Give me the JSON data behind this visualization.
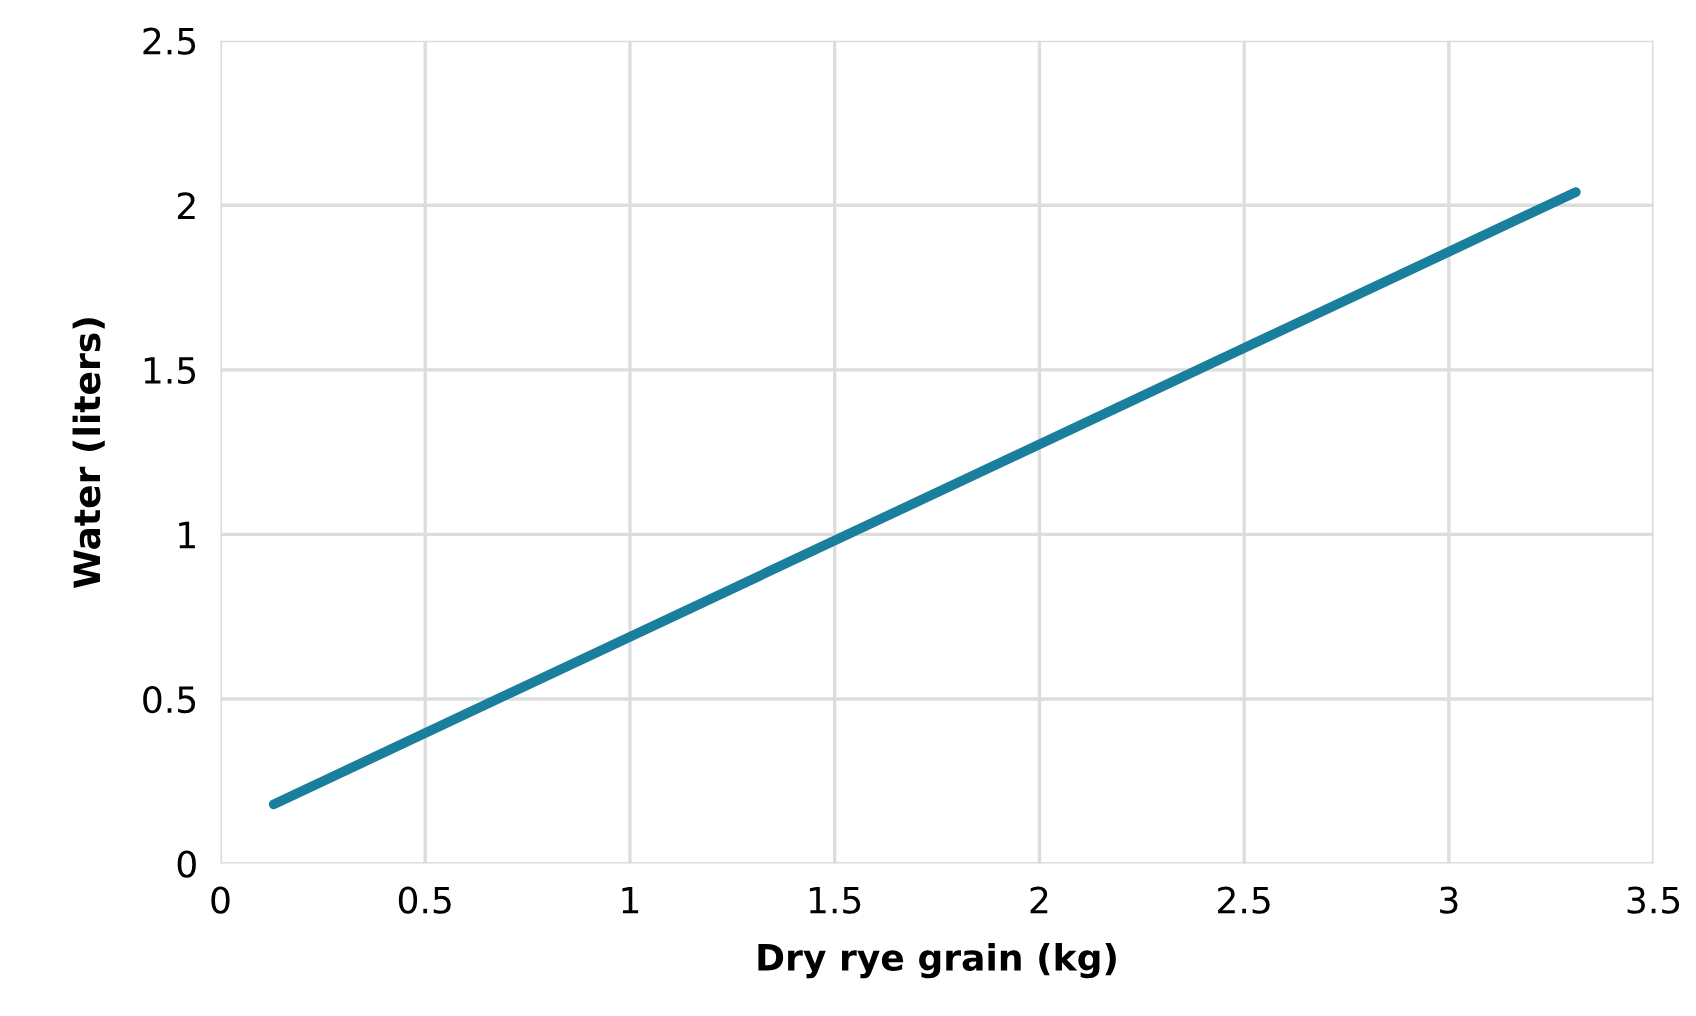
{
  "chart_data": {
    "type": "line",
    "xlabel": "Dry rye grain (kg)",
    "ylabel": "Water (liters)",
    "x": [
      0.13,
      3.31
    ],
    "series": [
      {
        "color": "#1a7f9c",
        "values": [
          0.18,
          2.04
        ]
      }
    ],
    "xlim": [
      0,
      3.5
    ],
    "xticks": [
      0,
      0.5,
      1,
      1.5,
      2,
      2.5,
      3,
      3.5
    ],
    "ylim": [
      0,
      2.5
    ],
    "yticks": [
      0,
      0.5,
      1,
      1.5,
      2,
      2.5
    ],
    "grid": true,
    "marker": "none",
    "line_style": "solid"
  }
}
